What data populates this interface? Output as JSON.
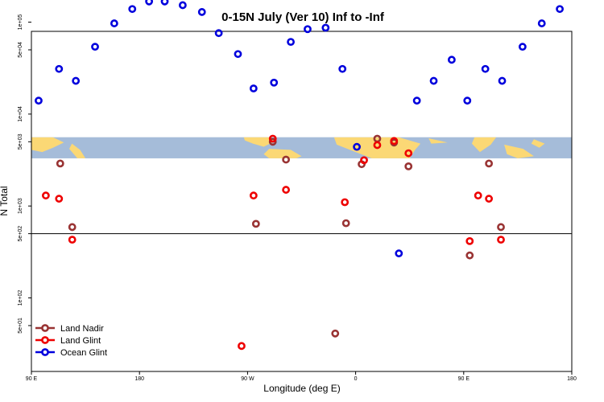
{
  "chart_data": {
    "type": "scatter",
    "title": "0-15N July (Ver 10)   Inf to -Inf",
    "xlabel": "Longitude (deg E)",
    "ylabel": "N Total",
    "xlim": [
      90,
      540
    ],
    "ylim_log": [
      1.2,
      4.9
    ],
    "x_ticks": [
      {
        "value": 90,
        "label": "90 E"
      },
      {
        "value": 180,
        "label": "180"
      },
      {
        "value": 270,
        "label": "90 W"
      },
      {
        "value": 360,
        "label": "0"
      },
      {
        "value": 450,
        "label": "90 E"
      },
      {
        "value": 540,
        "label": "180"
      }
    ],
    "y_ticks": [
      {
        "value": 50,
        "label": "5e+01"
      },
      {
        "value": 100,
        "label": "1e+02"
      },
      {
        "value": 500,
        "label": "5e+02"
      },
      {
        "value": 1000,
        "label": "1e+03"
      },
      {
        "value": 5000,
        "label": "5e+03"
      },
      {
        "value": 10000,
        "label": "1e+04"
      },
      {
        "value": 50000,
        "label": "5e+04"
      },
      {
        "value": 100000,
        "label": "1e+05"
      }
    ],
    "reference_line": {
      "value": 500
    },
    "map_band": {
      "y_low": 3300,
      "y_high": 5600
    },
    "legend": {
      "position": "bottom-left"
    },
    "series": [
      {
        "name": "Land Nadir",
        "color": "#993333",
        "points": [
          {
            "x": 114,
            "y": 2900
          },
          {
            "x": 124,
            "y": 590
          },
          {
            "x": 277,
            "y": 640
          },
          {
            "x": 291,
            "y": 5000
          },
          {
            "x": 302,
            "y": 3200
          },
          {
            "x": 343,
            "y": 41
          },
          {
            "x": 352,
            "y": 650
          },
          {
            "x": 365,
            "y": 2850
          },
          {
            "x": 378,
            "y": 5400
          },
          {
            "x": 392,
            "y": 4900
          },
          {
            "x": 404,
            "y": 2700
          },
          {
            "x": 455,
            "y": 290
          },
          {
            "x": 471,
            "y": 2900
          },
          {
            "x": 481,
            "y": 590
          }
        ]
      },
      {
        "name": "Land Glint",
        "color": "#ee0000",
        "points": [
          {
            "x": 102,
            "y": 1300
          },
          {
            "x": 113,
            "y": 1200
          },
          {
            "x": 124,
            "y": 430
          },
          {
            "x": 265,
            "y": 30
          },
          {
            "x": 275,
            "y": 1300
          },
          {
            "x": 291,
            "y": 5400
          },
          {
            "x": 302,
            "y": 1500
          },
          {
            "x": 351,
            "y": 1100
          },
          {
            "x": 367,
            "y": 3150
          },
          {
            "x": 378,
            "y": 4600
          },
          {
            "x": 392,
            "y": 5100
          },
          {
            "x": 404,
            "y": 3750
          },
          {
            "x": 455,
            "y": 415
          },
          {
            "x": 462,
            "y": 1300
          },
          {
            "x": 471,
            "y": 1200
          },
          {
            "x": 481,
            "y": 430
          }
        ]
      },
      {
        "name": "Ocean Glint",
        "color": "#0000dd",
        "points": [
          {
            "x": 96,
            "y": 14000
          },
          {
            "x": 113,
            "y": 31000
          },
          {
            "x": 127,
            "y": 23000
          },
          {
            "x": 143,
            "y": 54000
          },
          {
            "x": 159,
            "y": 97000
          },
          {
            "x": 174,
            "y": 139000
          },
          {
            "x": 188,
            "y": 168000
          },
          {
            "x": 201,
            "y": 168000
          },
          {
            "x": 216,
            "y": 153000
          },
          {
            "x": 232,
            "y": 129000
          },
          {
            "x": 246,
            "y": 76000
          },
          {
            "x": 262,
            "y": 45000
          },
          {
            "x": 275,
            "y": 19000
          },
          {
            "x": 292,
            "y": 22000
          },
          {
            "x": 306,
            "y": 61000
          },
          {
            "x": 320,
            "y": 84000
          },
          {
            "x": 335,
            "y": 87000
          },
          {
            "x": 349,
            "y": 31000
          },
          {
            "x": 361,
            "y": 4400
          },
          {
            "x": 396,
            "y": 305
          },
          {
            "x": 411,
            "y": 14000
          },
          {
            "x": 425,
            "y": 23000
          },
          {
            "x": 440,
            "y": 39000
          },
          {
            "x": 453,
            "y": 14000
          },
          {
            "x": 468,
            "y": 31000
          },
          {
            "x": 482,
            "y": 23000
          },
          {
            "x": 499,
            "y": 54000
          },
          {
            "x": 515,
            "y": 97000
          },
          {
            "x": 530,
            "y": 139000
          }
        ]
      }
    ]
  }
}
